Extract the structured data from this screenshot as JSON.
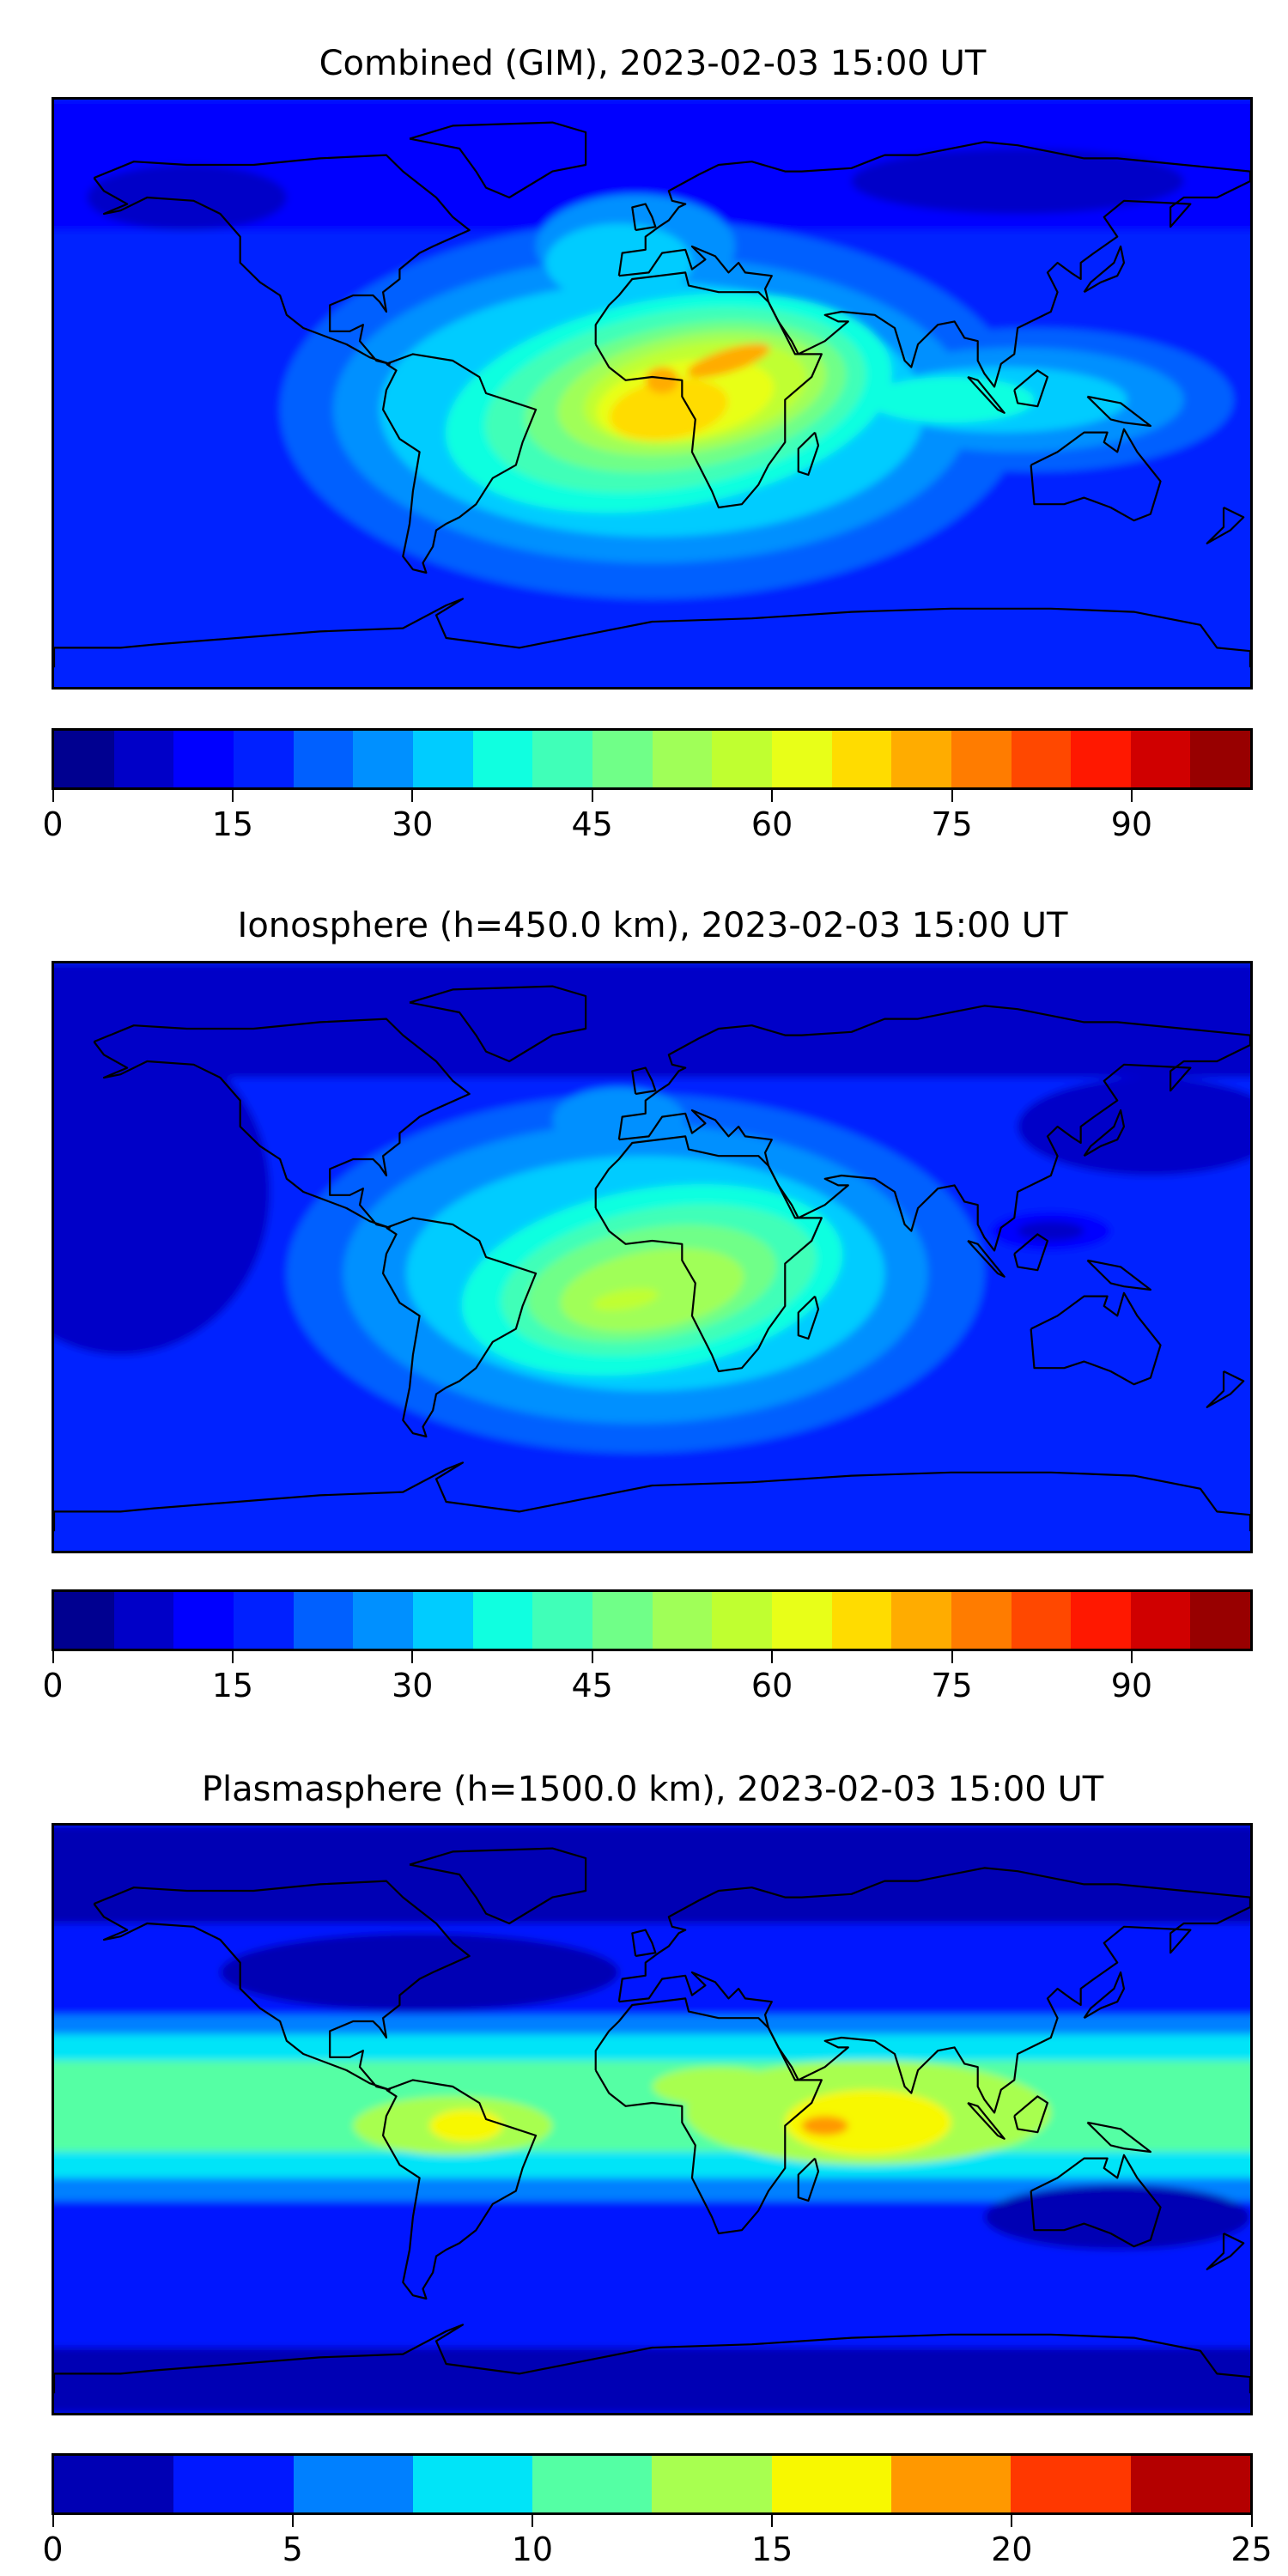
{
  "chart_data": [
    {
      "type": "heatmap",
      "title": "Combined (GIM), 2023-02-03 15:00 UT",
      "levels_range": [
        0,
        100
      ],
      "level_step": 5,
      "colors": [
        "#000090",
        "#0000c8",
        "#0000ff",
        "#0020ff",
        "#0060ff",
        "#0090ff",
        "#00ccff",
        "#10ffe0",
        "#40ffb8",
        "#70ff88",
        "#a0ff58",
        "#c0ff30",
        "#e8ff18",
        "#ffdc00",
        "#ffac00",
        "#ff7c00",
        "#ff4800",
        "#ff1800",
        "#d00000",
        "#980000"
      ],
      "ticks": [
        "0",
        "15",
        "30",
        "45",
        "60",
        "75",
        "90"
      ],
      "tick_values": [
        0,
        15,
        30,
        45,
        60,
        75,
        90
      ]
    },
    {
      "type": "heatmap",
      "title": "Ionosphere  (h=450.0 km), 2023-02-03 15:00 UT",
      "levels_range": [
        0,
        100
      ],
      "level_step": 5,
      "colors": [
        "#000090",
        "#0000c8",
        "#0000ff",
        "#0020ff",
        "#0060ff",
        "#0090ff",
        "#00ccff",
        "#10ffe0",
        "#40ffb8",
        "#70ff88",
        "#a0ff58",
        "#c0ff30",
        "#e8ff18",
        "#ffdc00",
        "#ffac00",
        "#ff7c00",
        "#ff4800",
        "#ff1800",
        "#d00000",
        "#980000"
      ],
      "ticks": [
        "0",
        "15",
        "30",
        "45",
        "60",
        "75",
        "90"
      ],
      "tick_values": [
        0,
        15,
        30,
        45,
        60,
        75,
        90
      ]
    },
    {
      "type": "heatmap",
      "title": "Plasmasphere (h=1500.0 km), 2023-02-03 15:00 UT",
      "levels_range": [
        0,
        25
      ],
      "level_step": 2.5,
      "colors": [
        "#0000b4",
        "#0018ff",
        "#0080ff",
        "#00e4f8",
        "#54ffa4",
        "#a8ff50",
        "#f8f800",
        "#ff9800",
        "#ff3800",
        "#b40000"
      ],
      "ticks": [
        "0",
        "5",
        "10",
        "15",
        "20",
        "25"
      ],
      "tick_values": [
        0,
        5,
        10,
        15,
        20,
        25
      ]
    }
  ]
}
